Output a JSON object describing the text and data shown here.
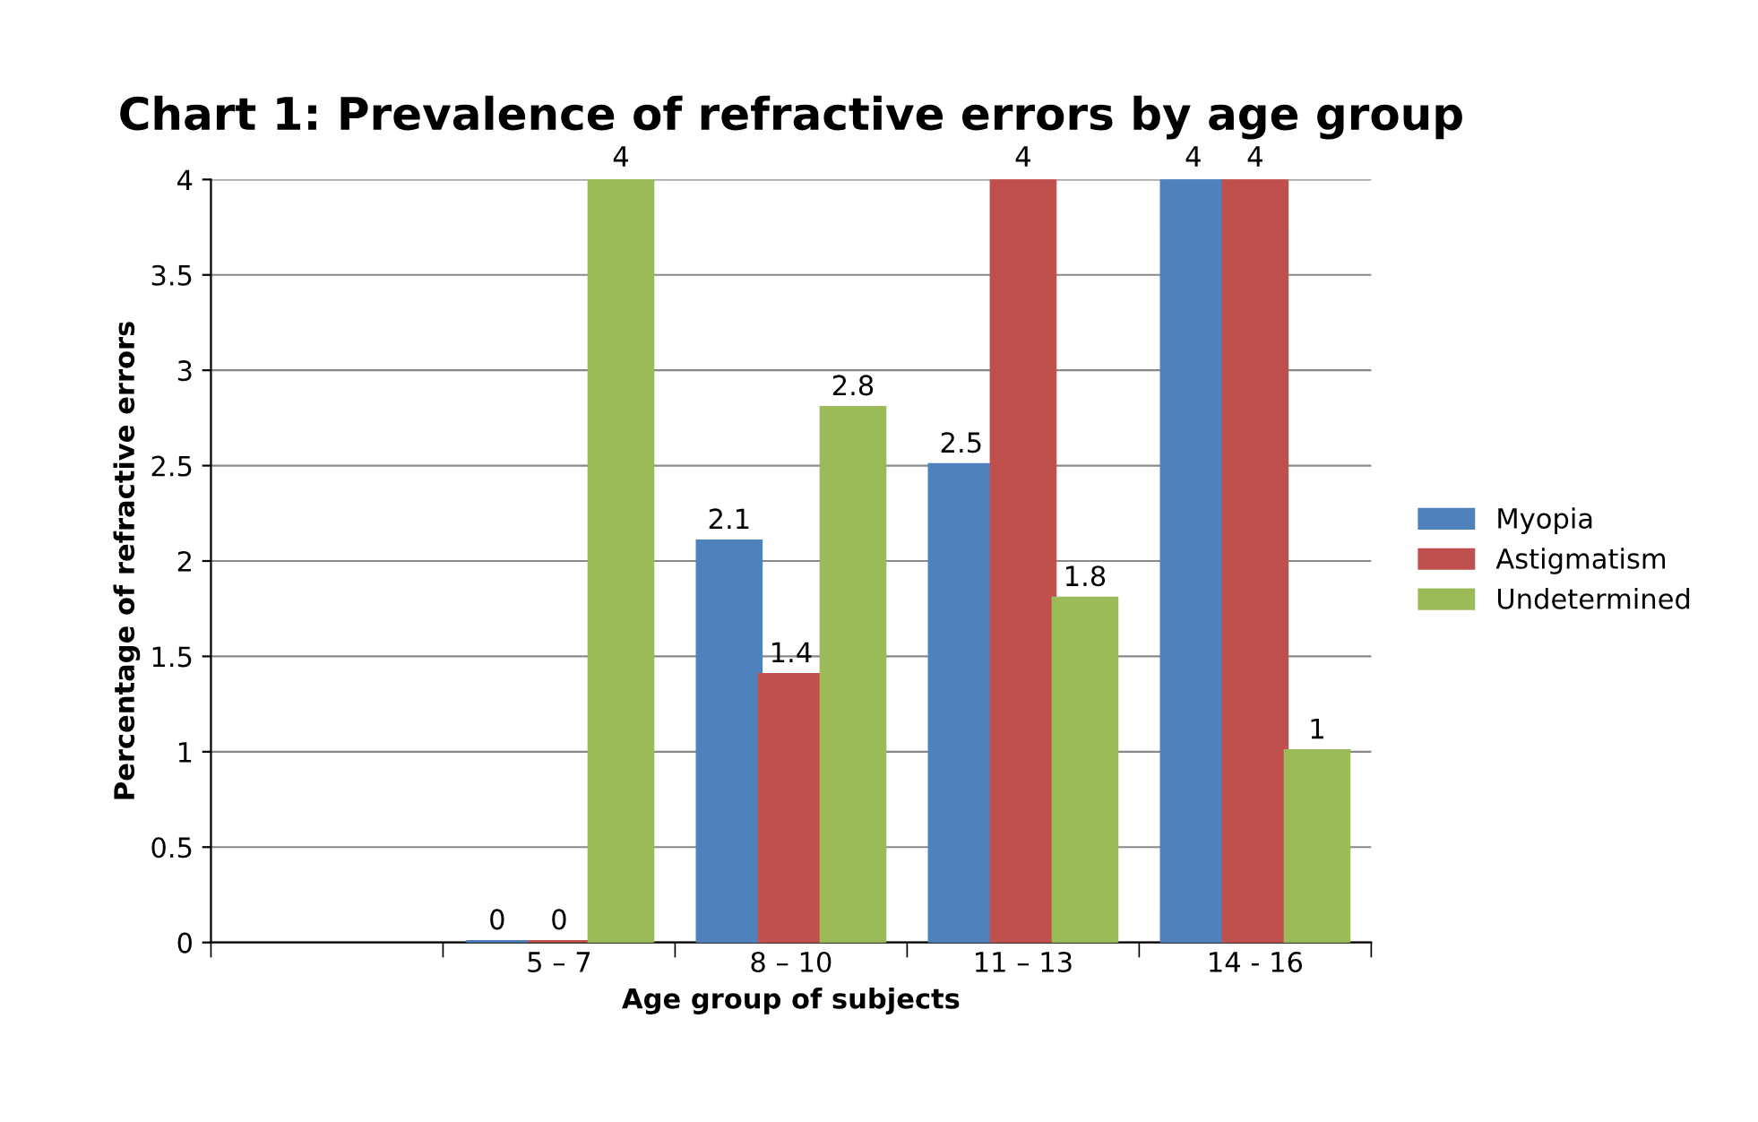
{
  "chart_data": {
    "type": "bar",
    "title": "Chart 1: Prevalence of refractive errors by age group",
    "xlabel": "Age group of subjects",
    "ylabel": "Percentage of refractive errors",
    "categories": [
      null,
      "5 – 7",
      "8 – 10",
      "11 – 13",
      "14 - 16"
    ],
    "series": [
      {
        "name": "Myopia",
        "color": "#4f81bd",
        "values": [
          null,
          0,
          2.1,
          2.5,
          4
        ]
      },
      {
        "name": "Astigmatism",
        "color": "#c0504d",
        "values": [
          null,
          0,
          1.4,
          4,
          4
        ]
      },
      {
        "name": "Undetermined",
        "color": "#9bbb59",
        "values": [
          null,
          4,
          2.8,
          1.8,
          1
        ]
      }
    ],
    "ylim": [
      0,
      4
    ],
    "yticks": [
      0,
      0.5,
      1,
      1.5,
      2,
      2.5,
      3,
      3.5,
      4
    ],
    "grid": "y",
    "legend": "right",
    "data_labels": true
  }
}
